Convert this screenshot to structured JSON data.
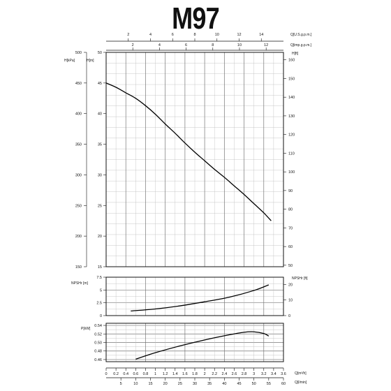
{
  "title": "M97",
  "chart_data": [
    {
      "type": "line",
      "name": "head-chart",
      "top_axes": [
        {
          "label": "Q[U.S.g.p.m.]",
          "ticks": [
            2,
            4,
            6,
            8,
            10,
            12,
            14
          ],
          "range": [
            0,
            16
          ]
        },
        {
          "label": "Q[imp.g.p.m.]",
          "ticks": [
            2,
            4,
            6,
            8,
            10,
            12
          ],
          "range": [
            0,
            13.3
          ]
        }
      ],
      "left_axes": [
        {
          "label": "H[kPa]",
          "ticks": [
            150,
            200,
            250,
            300,
            350,
            400,
            450,
            500
          ],
          "range": [
            150,
            500
          ]
        },
        {
          "label": "H[m]",
          "ticks": [
            15,
            20,
            25,
            30,
            35,
            40,
            45,
            50
          ],
          "range": [
            15,
            50
          ]
        }
      ],
      "right_axis": {
        "label": "H[ft]",
        "ticks": [
          50,
          60,
          70,
          80,
          90,
          100,
          110,
          120,
          130,
          140,
          150,
          160
        ],
        "range": [
          49.2,
          164
        ]
      },
      "x": [
        0,
        0.2,
        0.4,
        0.6,
        0.8,
        1.0,
        1.2,
        1.4,
        1.6,
        1.8,
        2.0,
        2.2,
        2.4,
        2.6,
        2.8,
        3.0,
        3.2,
        3.35
      ],
      "series": [
        {
          "values": [
            45,
            44.3,
            43.4,
            42.5,
            41.3,
            39.9,
            38.3,
            36.8,
            35.2,
            33.7,
            32.3,
            30.9,
            29.6,
            28.2,
            26.8,
            25.3,
            23.8,
            22.5
          ]
        }
      ],
      "ylim": [
        15,
        50
      ],
      "grid": true
    },
    {
      "type": "line",
      "name": "npsh-chart",
      "left_axis": {
        "label": "NPSHr [m]",
        "ticks": [
          0,
          2.5,
          5,
          7.5
        ],
        "range": [
          0,
          7.5
        ]
      },
      "right_axis": {
        "label": "NPSHr [ft]",
        "ticks": [
          0,
          10,
          20
        ],
        "range": [
          0,
          24.6
        ]
      },
      "x": [
        0.5,
        1.0,
        1.5,
        2.0,
        2.5,
        3.0,
        3.3
      ],
      "series": [
        {
          "values": [
            0.9,
            1.3,
            1.9,
            2.7,
            3.6,
            4.9,
            6.0
          ]
        }
      ],
      "ylim": [
        0,
        7.5
      ],
      "grid": true
    },
    {
      "type": "line",
      "name": "power-chart",
      "left_axis": {
        "label": "P[kW]",
        "ticks": [
          0.46,
          0.48,
          0.5,
          0.52,
          0.54
        ],
        "range": [
          0.46,
          0.54
        ]
      },
      "x": [
        0.6,
        1.0,
        1.5,
        2.0,
        2.5,
        2.8,
        3.0,
        3.2,
        3.3
      ],
      "series": [
        {
          "values": [
            0.461,
            0.476,
            0.492,
            0.506,
            0.518,
            0.524,
            0.525,
            0.521,
            0.515
          ]
        }
      ],
      "ylim": [
        0.455,
        0.545
      ],
      "grid": true,
      "bottom_axes": [
        {
          "label": "Q[m³/h]",
          "ticks": [
            0,
            0.2,
            0.4,
            0.6,
            0.8,
            1,
            1.2,
            1.4,
            1.6,
            1.8,
            2,
            2.2,
            2.4,
            2.6,
            2.8,
            3,
            3.2,
            3.4,
            3.6
          ],
          "range": [
            0,
            3.6
          ]
        },
        {
          "label": "Q[l/min]",
          "ticks": [
            5,
            10,
            15,
            20,
            25,
            30,
            35,
            40,
            45,
            50,
            55,
            60
          ],
          "range": [
            0,
            60
          ]
        }
      ]
    }
  ]
}
